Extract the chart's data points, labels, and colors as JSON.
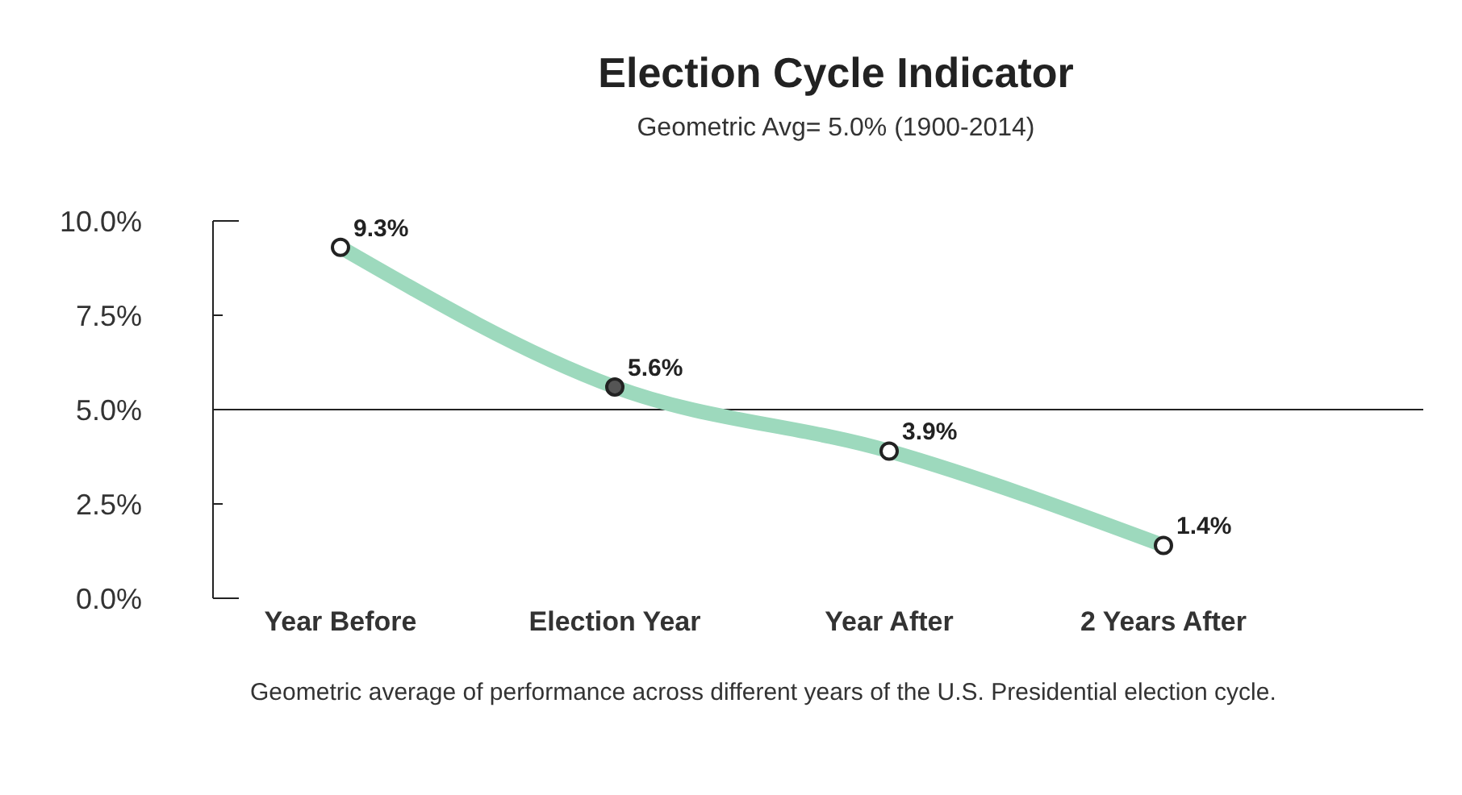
{
  "chart_data": {
    "type": "line",
    "title": "Election Cycle Indicator",
    "subtitle": "Geometric Avg= 5.0% (1900-2014)",
    "categories": [
      "Year Before",
      "Election Year",
      "Year After",
      "2 Years After"
    ],
    "series": [
      {
        "color": "#9dd9bd",
        "values": [
          9.3,
          5.6,
          3.9,
          1.4
        ],
        "colors": [
          "#ffffff",
          "#555555",
          "#ffffff",
          "#ffffff"
        ],
        "value_labels": [
          "9.3%",
          "5.6%",
          "3.9%",
          "1.4%"
        ]
      }
    ],
    "ylim": [
      0,
      10
    ],
    "yticks": [
      {
        "value": 0,
        "label": "0.0%"
      },
      {
        "value": 2.5,
        "label": "2.5%"
      },
      {
        "value": 5,
        "label": "5.0%"
      },
      {
        "value": 7.5,
        "label": "7.5%"
      },
      {
        "value": 10,
        "label": "10.0%"
      }
    ],
    "ref_lines": [
      {
        "axis": "y",
        "value": 5,
        "color": "#222222"
      }
    ],
    "marker": "circle",
    "line_style": "solid",
    "annotations": [
      "Geometric average of performance across different years of the U.S. Presidential election cycle."
    ]
  }
}
